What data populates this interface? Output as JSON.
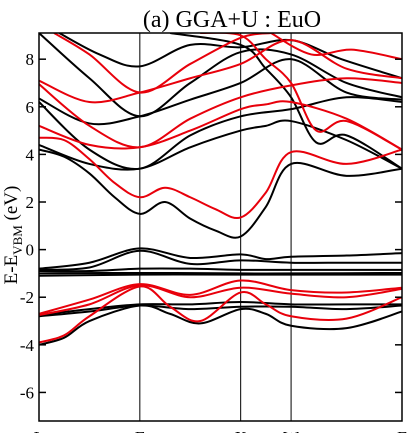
{
  "chart_data": {
    "type": "line",
    "title": "(a) GGA+U : EuO",
    "xlabel": "",
    "ylabel": {
      "main": "E-E",
      "sub": "VBM",
      "unit": " (eV)"
    },
    "x_tick_labels": [
      "L",
      "Γ",
      "X",
      "W",
      "Γ"
    ],
    "x_tick_positions": [
      0,
      1,
      2,
      2.5,
      3.6
    ],
    "xlim": [
      0,
      3.6
    ],
    "ylim": [
      -7.2,
      9.1
    ],
    "y_ticks": [
      -6,
      -4,
      -2,
      0,
      2,
      4,
      6,
      8
    ],
    "grid": false,
    "legend": "none",
    "series_colors": {
      "black_spin": "#000000",
      "red_spin": "#e8000b"
    },
    "series": [
      {
        "color": "black_spin",
        "points": [
          [
            0,
            -0.8
          ],
          [
            0.5,
            -0.55
          ],
          [
            1,
            0.05
          ],
          [
            1.5,
            -0.35
          ],
          [
            2,
            -0.2
          ],
          [
            2.25,
            -0.4
          ],
          [
            2.5,
            -0.3
          ],
          [
            3.05,
            -0.25
          ],
          [
            3.6,
            -0.15
          ]
        ]
      },
      {
        "color": "black_spin",
        "points": [
          [
            0,
            -0.85
          ],
          [
            0.5,
            -0.75
          ],
          [
            1,
            -0.05
          ],
          [
            1.5,
            -0.6
          ],
          [
            2,
            -0.45
          ],
          [
            2.5,
            -0.55
          ],
          [
            3.05,
            -0.55
          ],
          [
            3.6,
            -0.55
          ]
        ]
      },
      {
        "color": "black_spin",
        "points": [
          [
            0,
            -0.9
          ],
          [
            0.5,
            -0.9
          ],
          [
            1,
            -0.8
          ],
          [
            1.5,
            -0.8
          ],
          [
            2,
            -0.85
          ],
          [
            2.5,
            -0.85
          ],
          [
            3.6,
            -0.85
          ]
        ]
      },
      {
        "color": "black_spin",
        "points": [
          [
            0,
            -1.0
          ],
          [
            1,
            -0.98
          ],
          [
            2,
            -1.0
          ],
          [
            2.5,
            -1.0
          ],
          [
            3.6,
            -0.98
          ]
        ]
      },
      {
        "color": "black_spin",
        "points": [
          [
            0,
            -1.1
          ],
          [
            1,
            -1.05
          ],
          [
            2,
            -1.05
          ],
          [
            2.5,
            -1.05
          ],
          [
            3.6,
            -1.05
          ]
        ]
      },
      {
        "color": "black_spin",
        "points": [
          [
            0,
            -2.75
          ],
          [
            0.5,
            -2.5
          ],
          [
            1,
            -2.3
          ],
          [
            1.5,
            -2.3
          ],
          [
            2,
            -2.2
          ],
          [
            2.5,
            -2.3
          ],
          [
            3.05,
            -2.3
          ],
          [
            3.6,
            -2.3
          ]
        ]
      },
      {
        "color": "black_spin",
        "points": [
          [
            0,
            -2.8
          ],
          [
            0.5,
            -2.6
          ],
          [
            1,
            -2.35
          ],
          [
            1.5,
            -2.5
          ],
          [
            2,
            -2.4
          ],
          [
            2.5,
            -2.4
          ],
          [
            3.05,
            -2.5
          ],
          [
            3.6,
            -2.35
          ]
        ]
      },
      {
        "color": "black_spin",
        "points": [
          [
            0,
            -4.0
          ],
          [
            0.25,
            -3.7
          ],
          [
            0.5,
            -3.0
          ],
          [
            1,
            -2.35
          ],
          [
            1.3,
            -2.7
          ],
          [
            1.6,
            -3.1
          ],
          [
            2,
            -2.5
          ],
          [
            2.25,
            -2.7
          ],
          [
            2.5,
            -3.2
          ],
          [
            3.05,
            -3.3
          ],
          [
            3.6,
            -2.6
          ]
        ]
      },
      {
        "color": "black_spin",
        "points": [
          [
            0,
            4.2
          ],
          [
            0.25,
            3.9
          ],
          [
            0.5,
            3.2
          ],
          [
            0.75,
            2.2
          ],
          [
            1,
            1.5
          ],
          [
            1.25,
            2.0
          ],
          [
            1.5,
            1.3
          ],
          [
            1.75,
            0.8
          ],
          [
            2,
            0.55
          ],
          [
            2.25,
            1.8
          ],
          [
            2.5,
            3.6
          ],
          [
            3.05,
            3.1
          ],
          [
            3.6,
            3.4
          ]
        ]
      },
      {
        "color": "black_spin",
        "points": [
          [
            0,
            4.4
          ],
          [
            0.5,
            3.6
          ],
          [
            1,
            3.4
          ],
          [
            1.5,
            4.3
          ],
          [
            2,
            5.0
          ],
          [
            2.25,
            5.2
          ],
          [
            2.5,
            5.4
          ],
          [
            3.05,
            4.6
          ],
          [
            3.6,
            3.4
          ]
        ]
      },
      {
        "color": "black_spin",
        "points": [
          [
            0,
            6.2
          ],
          [
            0.5,
            4.2
          ],
          [
            1,
            3.4
          ],
          [
            1.5,
            4.8
          ],
          [
            2,
            5.6
          ],
          [
            2.5,
            5.9
          ],
          [
            3.05,
            6.4
          ],
          [
            3.6,
            6.2
          ]
        ]
      },
      {
        "color": "black_spin",
        "points": [
          [
            0,
            6.35
          ],
          [
            0.5,
            5.3
          ],
          [
            1,
            5.6
          ],
          [
            1.5,
            6.3
          ],
          [
            2,
            7.0
          ],
          [
            2.5,
            8.0
          ],
          [
            3.05,
            6.6
          ],
          [
            3.6,
            6.3
          ]
        ]
      },
      {
        "color": "black_spin",
        "points": [
          [
            0,
            9.1
          ],
          [
            0.5,
            7.2
          ],
          [
            1,
            5.6
          ],
          [
            1.5,
            7.0
          ],
          [
            2,
            8.3
          ],
          [
            2.5,
            8.2
          ],
          [
            3.05,
            7.0
          ],
          [
            3.6,
            6.4
          ]
        ]
      },
      {
        "color": "black_spin",
        "points": [
          [
            0.2,
            9.1
          ],
          [
            0.6,
            8.2
          ],
          [
            1,
            7.7
          ],
          [
            1.5,
            8.6
          ],
          [
            2,
            8.5
          ],
          [
            2.5,
            8.8
          ],
          [
            3,
            8.0
          ],
          [
            3.6,
            7.2
          ]
        ]
      },
      {
        "color": "black_spin",
        "points": [
          [
            1.3,
            9.1
          ],
          [
            2,
            8.6
          ],
          [
            2.25,
            7.6
          ],
          [
            2.5,
            6.4
          ],
          [
            2.75,
            4.5
          ],
          [
            3.05,
            4.8
          ],
          [
            3.6,
            3.4
          ]
        ]
      },
      {
        "color": "red_spin",
        "points": [
          [
            0,
            -2.7
          ],
          [
            0.5,
            -2.1
          ],
          [
            1,
            -1.45
          ],
          [
            1.5,
            -1.9
          ],
          [
            2,
            -1.3
          ],
          [
            2.5,
            -1.7
          ],
          [
            3.05,
            -1.8
          ],
          [
            3.6,
            -1.6
          ]
        ]
      },
      {
        "color": "red_spin",
        "points": [
          [
            0,
            -2.75
          ],
          [
            0.5,
            -2.3
          ],
          [
            1,
            -1.5
          ],
          [
            1.5,
            -2.0
          ],
          [
            2,
            -1.6
          ],
          [
            2.5,
            -1.85
          ],
          [
            3.05,
            -2.0
          ],
          [
            3.6,
            -1.65
          ]
        ]
      },
      {
        "color": "red_spin",
        "points": [
          [
            0,
            -3.9
          ],
          [
            0.25,
            -3.6
          ],
          [
            0.5,
            -2.8
          ],
          [
            1,
            -1.55
          ],
          [
            1.3,
            -2.4
          ],
          [
            1.6,
            -3.0
          ],
          [
            2,
            -1.8
          ],
          [
            2.25,
            -2.3
          ],
          [
            2.5,
            -2.8
          ],
          [
            3.05,
            -2.9
          ],
          [
            3.6,
            -2.0
          ]
        ]
      },
      {
        "color": "red_spin",
        "points": [
          [
            0,
            4.7
          ],
          [
            0.25,
            4.6
          ],
          [
            0.5,
            3.8
          ],
          [
            0.75,
            2.8
          ],
          [
            1,
            2.2
          ],
          [
            1.25,
            2.6
          ],
          [
            1.5,
            2.2
          ],
          [
            1.75,
            1.7
          ],
          [
            2,
            1.35
          ],
          [
            2.25,
            2.4
          ],
          [
            2.5,
            4.1
          ],
          [
            3.05,
            3.6
          ],
          [
            3.6,
            4.2
          ]
        ]
      },
      {
        "color": "red_spin",
        "points": [
          [
            0,
            5.2
          ],
          [
            0.5,
            4.4
          ],
          [
            1,
            4.3
          ],
          [
            1.5,
            5.0
          ],
          [
            2,
            5.9
          ],
          [
            2.25,
            6.1
          ],
          [
            2.5,
            6.2
          ],
          [
            3.05,
            5.5
          ],
          [
            3.6,
            4.2
          ]
        ]
      },
      {
        "color": "red_spin",
        "points": [
          [
            0,
            6.95
          ],
          [
            0.5,
            5.2
          ],
          [
            1,
            4.3
          ],
          [
            1.5,
            5.5
          ],
          [
            2,
            6.4
          ],
          [
            2.5,
            6.9
          ],
          [
            3.05,
            7.2
          ],
          [
            3.6,
            7.0
          ]
        ]
      },
      {
        "color": "red_spin",
        "points": [
          [
            0,
            7.1
          ],
          [
            0.5,
            6.2
          ],
          [
            1,
            6.6
          ],
          [
            1.5,
            7.2
          ],
          [
            2,
            7.8
          ],
          [
            2.5,
            8.8
          ],
          [
            3.05,
            7.6
          ],
          [
            3.6,
            7.2
          ]
        ]
      },
      {
        "color": "red_spin",
        "points": [
          [
            0.15,
            9.1
          ],
          [
            0.5,
            8.2
          ],
          [
            1,
            6.6
          ],
          [
            1.5,
            7.8
          ],
          [
            2,
            8.9
          ],
          [
            2.3,
            9.1
          ]
        ]
      },
      {
        "color": "red_spin",
        "points": [
          [
            1.6,
            9.1
          ],
          [
            2,
            9.0
          ],
          [
            2.25,
            8.0
          ],
          [
            2.5,
            7.0
          ],
          [
            2.75,
            5.0
          ],
          [
            3.05,
            5.4
          ],
          [
            3.6,
            4.2
          ]
        ]
      },
      {
        "color": "red_spin",
        "points": [
          [
            2.3,
            9.1
          ],
          [
            2.7,
            8.2
          ],
          [
            3.1,
            8.4
          ],
          [
            3.6,
            8.0
          ]
        ]
      }
    ]
  }
}
